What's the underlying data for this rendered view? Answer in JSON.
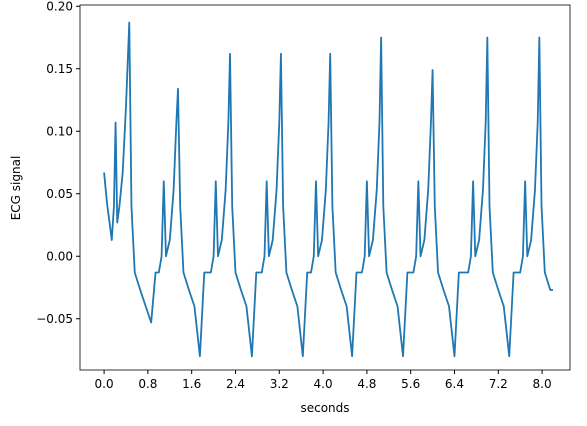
{
  "chart_data": {
    "type": "line",
    "xlabel": "seconds",
    "ylabel": "ECG signal",
    "xlim": [
      -0.44,
      8.51
    ],
    "ylim": [
      -0.091,
      0.201
    ],
    "xticks": [
      {
        "value": 0,
        "label": "0.0"
      },
      0.8,
      1.6,
      2.4,
      3.2,
      {
        "value": 4,
        "label": "4.0"
      },
      4.8,
      5.6,
      6.4,
      7.2,
      {
        "value": 8,
        "label": "8.0"
      }
    ],
    "yticks": [
      {
        "value": -0.05,
        "label": "−0.05"
      },
      {
        "value": 0,
        "label": "0.00"
      },
      0.05,
      {
        "value": 0.1,
        "label": "0.10"
      },
      0.15,
      {
        "value": 0.2,
        "label": "0.20"
      }
    ],
    "x": [
      0,
      0.03,
      0.06,
      0.1,
      0.14,
      0.18,
      0.21,
      0.24,
      0.28,
      0.34,
      0.4,
      0.46,
      0.5,
      0.56,
      0.66,
      0.76,
      0.86,
      0.94,
      1.0,
      1.05,
      1.09,
      1.13,
      1.2,
      1.27,
      1.32,
      1.35,
      1.39,
      1.45,
      1.55,
      1.65,
      1.75,
      1.83,
      1.95,
      2.0,
      2.04,
      2.08,
      2.15,
      2.22,
      2.27,
      2.3,
      2.34,
      2.4,
      2.5,
      2.6,
      2.7,
      2.78,
      2.88,
      2.93,
      2.97,
      3.01,
      3.08,
      3.15,
      3.2,
      3.23,
      3.27,
      3.33,
      3.43,
      3.53,
      3.63,
      3.71,
      3.78,
      3.83,
      3.87,
      3.91,
      3.98,
      4.05,
      4.1,
      4.13,
      4.17,
      4.23,
      4.33,
      4.43,
      4.53,
      4.61,
      4.71,
      4.76,
      4.8,
      4.84,
      4.91,
      4.98,
      5.03,
      5.06,
      5.1,
      5.16,
      5.26,
      5.36,
      5.46,
      5.54,
      5.65,
      5.7,
      5.74,
      5.78,
      5.85,
      5.92,
      5.97,
      6.0,
      6.04,
      6.1,
      6.2,
      6.3,
      6.4,
      6.48,
      6.65,
      6.7,
      6.74,
      6.78,
      6.85,
      6.92,
      6.97,
      7.0,
      7.04,
      7.1,
      7.2,
      7.3,
      7.4,
      7.48,
      7.6,
      7.65,
      7.69,
      7.73,
      7.8,
      7.87,
      7.92,
      7.95,
      7.99,
      8.05,
      8.15,
      8.2
    ],
    "series": [
      {
        "color": "#1f77b4",
        "values": [
          0.067,
          0.053,
          0.04,
          0.027,
          0.013,
          0.04,
          0.107,
          0.027,
          0.04,
          0.067,
          0.12,
          0.187,
          0.04,
          -0.013,
          -0.027,
          -0.04,
          -0.053,
          -0.013,
          -0.013,
          0,
          0.06,
          0,
          0.013,
          0.053,
          0.107,
          0.134,
          0.04,
          -0.013,
          -0.027,
          -0.04,
          -0.08,
          -0.013,
          -0.013,
          0,
          0.06,
          0,
          0.013,
          0.053,
          0.107,
          0.162,
          0.04,
          -0.013,
          -0.027,
          -0.04,
          -0.08,
          -0.013,
          -0.013,
          0,
          0.06,
          0,
          0.013,
          0.053,
          0.107,
          0.162,
          0.04,
          -0.013,
          -0.027,
          -0.04,
          -0.08,
          -0.013,
          -0.013,
          0,
          0.06,
          0,
          0.013,
          0.053,
          0.107,
          0.162,
          0.04,
          -0.013,
          -0.027,
          -0.04,
          -0.08,
          -0.013,
          -0.013,
          0,
          0.06,
          0,
          0.013,
          0.053,
          0.107,
          0.175,
          0.04,
          -0.013,
          -0.027,
          -0.04,
          -0.08,
          -0.013,
          -0.013,
          0,
          0.06,
          0,
          0.013,
          0.053,
          0.107,
          0.149,
          0.04,
          -0.013,
          -0.027,
          -0.04,
          -0.08,
          -0.013,
          -0.013,
          0,
          0.06,
          0,
          0.013,
          0.053,
          0.107,
          0.175,
          0.04,
          -0.013,
          -0.027,
          -0.04,
          -0.08,
          -0.013,
          -0.013,
          0,
          0.06,
          0,
          0.013,
          0.053,
          0.107,
          0.175,
          0.04,
          -0.013,
          -0.027,
          -0.027
        ]
      }
    ]
  }
}
